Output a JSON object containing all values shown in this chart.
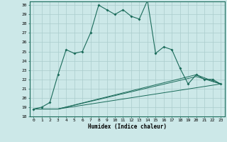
{
  "title": "",
  "xlabel": "Humidex (Indice chaleur)",
  "xlim": [
    -0.5,
    23.5
  ],
  "ylim": [
    18,
    30.4
  ],
  "yticks": [
    18,
    19,
    20,
    21,
    22,
    23,
    24,
    25,
    26,
    27,
    28,
    29,
    30
  ],
  "xticks": [
    0,
    1,
    2,
    3,
    4,
    5,
    6,
    7,
    8,
    9,
    10,
    11,
    12,
    13,
    14,
    15,
    16,
    17,
    18,
    19,
    20,
    21,
    22,
    23
  ],
  "bg_color": "#cce8e8",
  "grid_color": "#aacccc",
  "line_color": "#1a6b5a",
  "line1_x": [
    0,
    1,
    2,
    3,
    4,
    5,
    6,
    7,
    8,
    9,
    10,
    11,
    12,
    13,
    14,
    15,
    16,
    17,
    18,
    19,
    20,
    21,
    22,
    23
  ],
  "line1_y": [
    18.8,
    19.0,
    19.5,
    22.5,
    25.2,
    24.8,
    25.0,
    27.0,
    30.0,
    29.5,
    29.0,
    29.5,
    28.8,
    28.5,
    30.5,
    24.8,
    25.5,
    25.2,
    23.2,
    21.5,
    22.5,
    22.0,
    22.0,
    21.5
  ],
  "line2_x": [
    0,
    3,
    23
  ],
  "line2_y": [
    18.8,
    18.8,
    21.5
  ],
  "line3_x": [
    0,
    3,
    20,
    23
  ],
  "line3_y": [
    18.8,
    18.8,
    22.3,
    21.5
  ],
  "line4_x": [
    0,
    3,
    20,
    23
  ],
  "line4_y": [
    18.8,
    18.8,
    22.5,
    21.5
  ]
}
